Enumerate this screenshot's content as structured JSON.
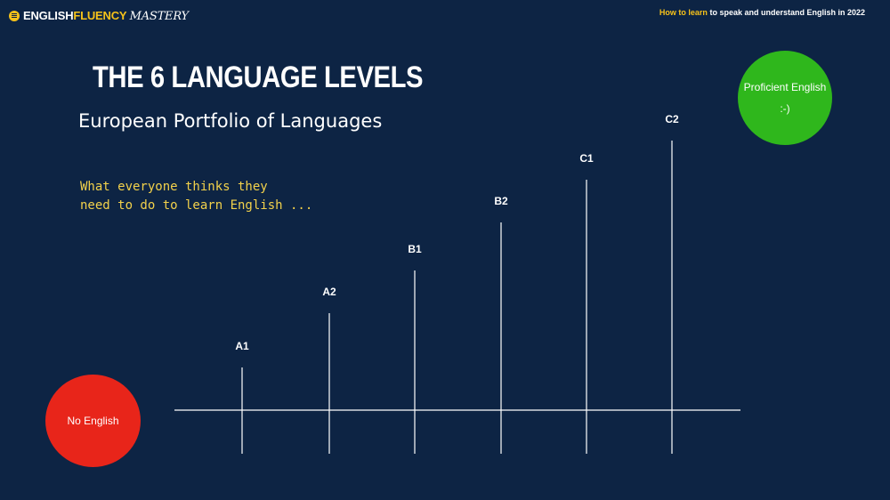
{
  "header": {
    "brand_part1": "ENGLISH",
    "brand_part2": "FLUENCY",
    "brand_part3": "MASTERY",
    "tagline_highlight": "How to learn",
    "tagline_rest": "to speak and understand English in 2022"
  },
  "slide": {
    "title": "THE 6 LANGUAGE LEVELS",
    "subtitle": "European Portfolio of Languages",
    "note_line1": "What everyone thinks they",
    "note_line2": "need to do to learn English ...",
    "end_circle_label": "Proficient English",
    "end_circle_face": ":-)",
    "start_circle_label": "No English"
  },
  "colors": {
    "background": "#0d2444",
    "accent_yellow": "#f6c21a",
    "proficient_green": "#2fb71c",
    "no_english_red": "#e8251a",
    "line": "#ffffff"
  },
  "levels": {
    "labels": [
      "A1",
      "A2",
      "B1",
      "B2",
      "C1",
      "C2"
    ],
    "heights": [
      1,
      2,
      3,
      4,
      5,
      6
    ]
  }
}
